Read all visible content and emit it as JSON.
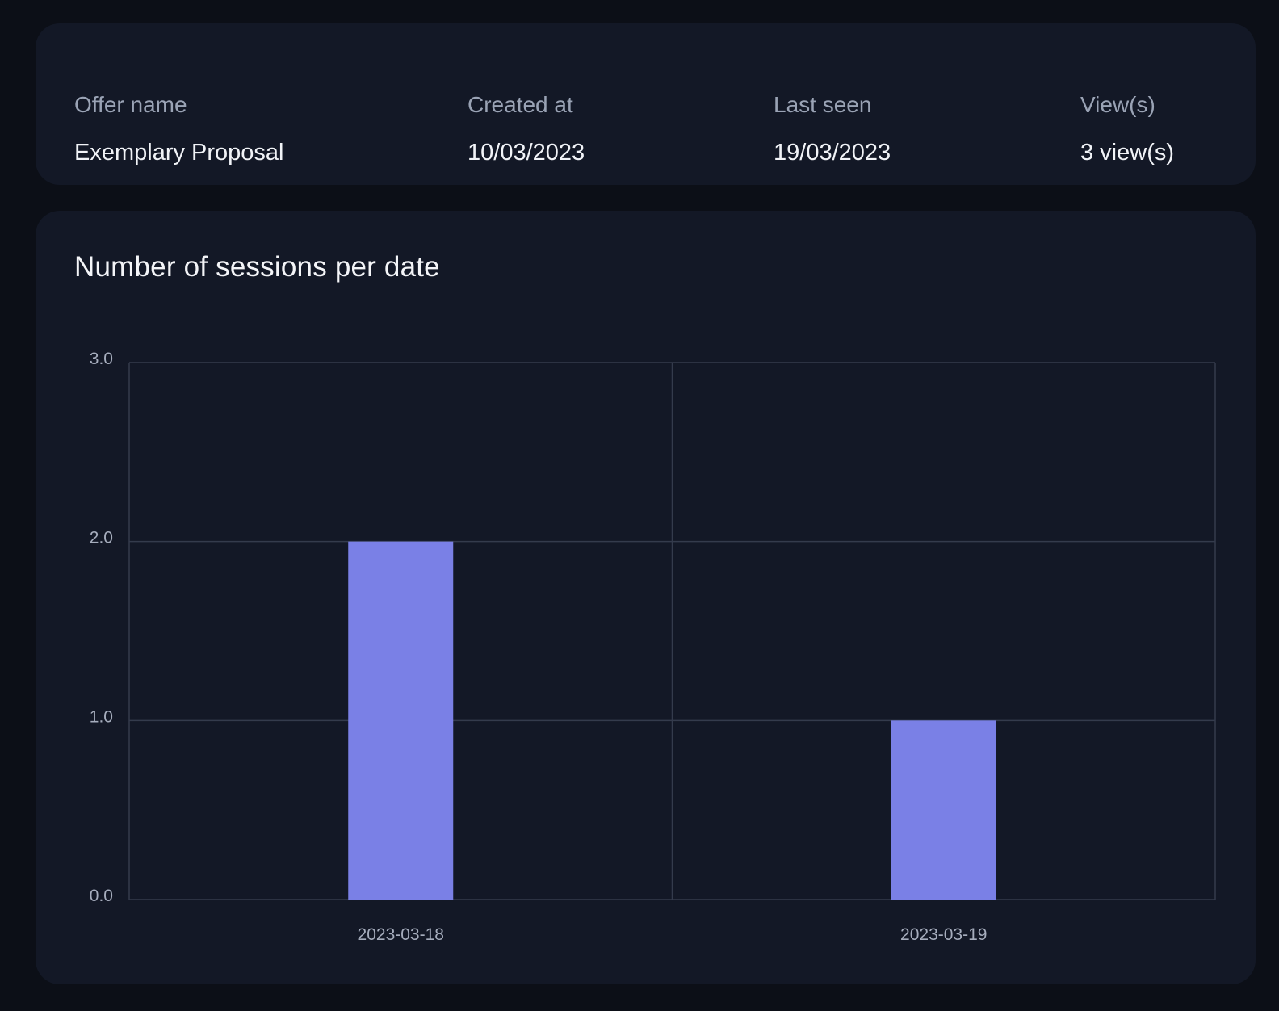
{
  "info": {
    "columns": [
      {
        "label": "Offer name",
        "value": "Exemplary Proposal"
      },
      {
        "label": "Created at",
        "value": "10/03/2023"
      },
      {
        "label": "Last seen",
        "value": "19/03/2023"
      },
      {
        "label": "View(s)",
        "value": "3 view(s)"
      }
    ]
  },
  "chart_data": {
    "type": "bar",
    "title": "Number of sessions per date",
    "categories": [
      "2023-03-18",
      "2023-03-19"
    ],
    "values": [
      2,
      1
    ],
    "ylim": [
      0,
      3
    ],
    "yticks": [
      "0.0",
      "1.0",
      "2.0",
      "3.0"
    ],
    "xlabel": "",
    "ylabel": "",
    "grid": true,
    "bar_color": "#7a80e6",
    "grid_color": "#343b4c"
  }
}
